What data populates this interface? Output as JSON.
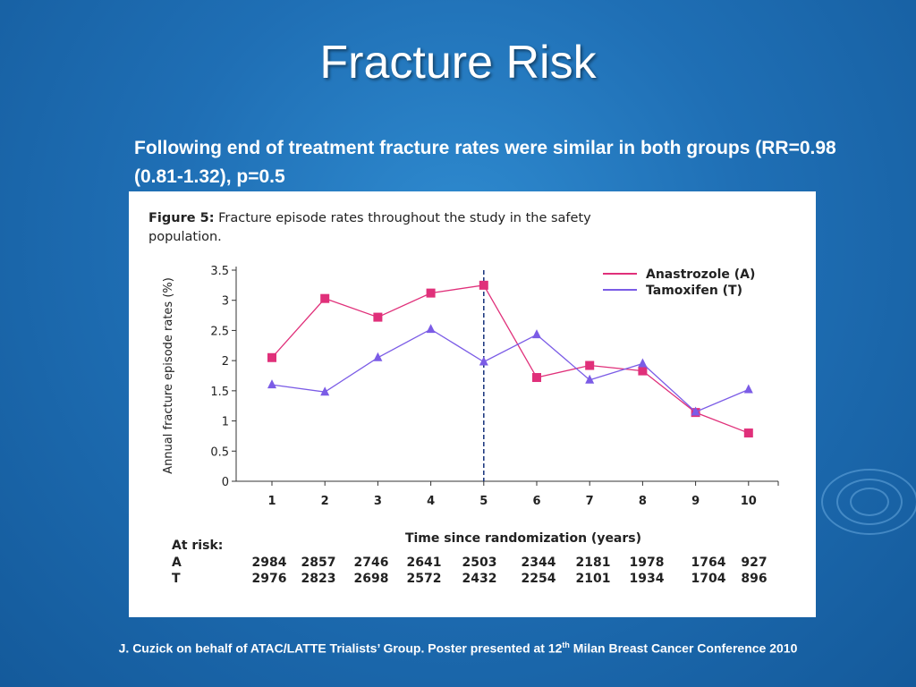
{
  "slide": {
    "title": "Fracture Risk",
    "subtitle": "Following end of treatment fracture rates were similar in both groups (RR=0.98 (0.81-1.32), p=0.5",
    "footer_pre": "J. Cuzick on behalf of ATAC/LATTE Trialists’ Group. Poster presented at 12",
    "footer_sup": "th",
    "footer_post": " Milan Breast Cancer Conference 2010"
  },
  "figure": {
    "caption_label": "Figure 5:",
    "caption_text_line1": " Fracture episode rates throughout the study in the safety",
    "caption_text_line2": "population."
  },
  "chart_data": {
    "type": "line",
    "xlabel": "Time since randomization (years)",
    "ylabel": "Annual fracture episode rates (%)",
    "categories": [
      "1",
      "2",
      "3",
      "4",
      "5",
      "6",
      "7",
      "8",
      "9",
      "10"
    ],
    "ylim": [
      0,
      3.5
    ],
    "yticks": [
      "0",
      "0.5",
      "1",
      "1.5",
      "2",
      "2.5",
      "3",
      "3.5"
    ],
    "reference_line_x": 5,
    "legend_position": "top-right",
    "series": [
      {
        "name": "Anastrozole (A)",
        "color": "#e0307a",
        "marker": "square",
        "values": [
          2.05,
          3.03,
          2.72,
          3.12,
          3.25,
          1.72,
          1.92,
          1.83,
          1.14,
          0.8
        ]
      },
      {
        "name": "Tamoxifen (T)",
        "color": "#7b5ce6",
        "marker": "triangle",
        "values": [
          1.6,
          1.48,
          2.05,
          2.52,
          1.98,
          2.43,
          1.68,
          1.95,
          1.15,
          1.52
        ]
      }
    ],
    "at_risk": {
      "label": "At risk:",
      "rows": [
        {
          "arm": "A",
          "values": [
            "2984",
            "2857",
            "2746",
            "2641",
            "2503",
            "2344",
            "2181",
            "1978",
            "1764",
            "927"
          ]
        },
        {
          "arm": "T",
          "values": [
            "2976",
            "2823",
            "2698",
            "2572",
            "2432",
            "2254",
            "2101",
            "1934",
            "1704",
            "896"
          ]
        }
      ]
    }
  }
}
